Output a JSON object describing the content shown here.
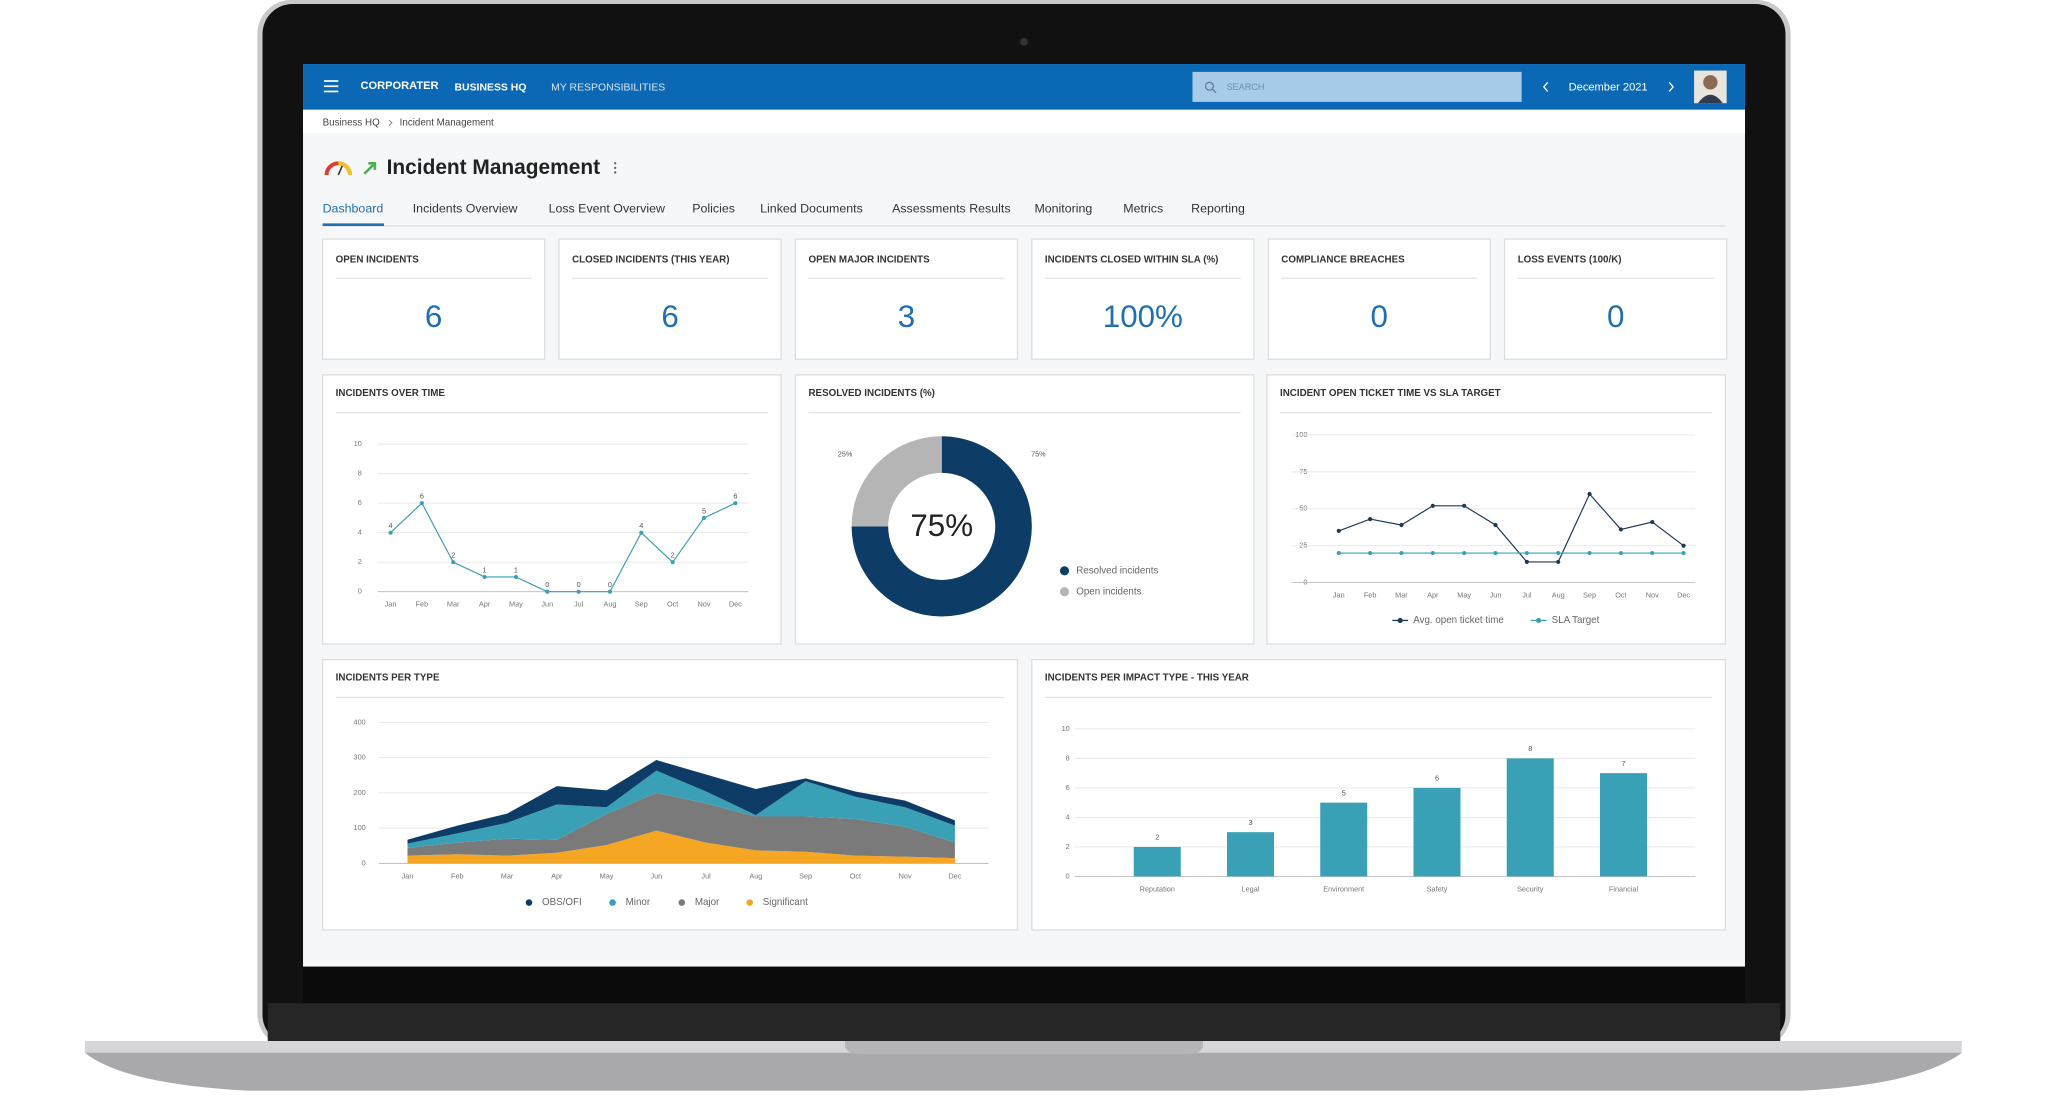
{
  "header": {
    "logo": "CORPORATER",
    "nav": [
      "BUSINESS HQ",
      "MY RESPONSIBILITIES"
    ],
    "search": "SEARCH",
    "period": "December 2021"
  },
  "breadcrumb": [
    "Business HQ",
    "Incident Management"
  ],
  "title": "Incident Management",
  "tabs": [
    "Dashboard",
    "Incidents Overview",
    "Loss Event Overview",
    "Policies",
    "Linked Documents",
    "Assessments Results",
    "Monitoring",
    "Metrics",
    "Reporting"
  ],
  "kpis": [
    {
      "title": "OPEN INCIDENTS",
      "value": "6"
    },
    {
      "title": "CLOSED INCIDENTS (THIS YEAR)",
      "value": "6"
    },
    {
      "title": "OPEN MAJOR INCIDENTS",
      "value": "3"
    },
    {
      "title": "INCIDENTS CLOSED WITHIN SLA (%)",
      "value": "100%"
    },
    {
      "title": "COMPLIANCE BREACHES",
      "value": "0"
    },
    {
      "title": "LOSS EVENTS (100/K)",
      "value": "0"
    }
  ],
  "chart_data": [
    {
      "type": "line",
      "title": "INCIDENTS OVER TIME",
      "categories": [
        "Jan",
        "Feb",
        "Mar",
        "Apr",
        "May",
        "Jun",
        "Jul",
        "Aug",
        "Sep",
        "Oct",
        "Nov",
        "Dec"
      ],
      "series": [
        {
          "name": "Incidents",
          "color": "#3aa0b5",
          "values": [
            4,
            6,
            2,
            1,
            1,
            0,
            0,
            0,
            4,
            2,
            5,
            6
          ]
        }
      ],
      "ylim": [
        0,
        10
      ],
      "yticks": [
        0,
        2,
        4,
        6,
        8,
        10
      ],
      "grid": true,
      "data_labels": true,
      "legend": false
    },
    {
      "type": "pie",
      "title": "RESOLVED INCIDENTS (%)",
      "categories": [
        "Resolved incidents",
        "Open incidents"
      ],
      "values": [
        75,
        25
      ],
      "value_labels": [
        "75%",
        "25%"
      ],
      "colors": [
        "#0d3d66",
        "#b5b5b5"
      ],
      "donut": true
    },
    {
      "type": "line",
      "title": "INCIDENT OPEN TICKET TIME VS SLA TARGET",
      "categories": [
        "Jan",
        "Feb",
        "Mar",
        "Apr",
        "May",
        "Jun",
        "Jul",
        "Aug",
        "Sep",
        "Oct",
        "Nov",
        "Dec"
      ],
      "series": [
        {
          "name": "Avg. open ticket time",
          "color": "#1d3a55",
          "values": [
            35,
            43,
            39,
            52,
            52,
            39,
            14,
            14,
            60,
            36,
            41,
            25
          ]
        },
        {
          "name": "SLA Target",
          "color": "#3aa0b5",
          "values": [
            20,
            20,
            20,
            20,
            20,
            20,
            20,
            20,
            20,
            20,
            20,
            20
          ]
        }
      ],
      "ylim": [
        0,
        100
      ],
      "yticks": [
        0,
        25,
        50,
        75,
        100
      ],
      "grid": true,
      "data_labels": false,
      "legend": true
    },
    {
      "type": "area",
      "title": "INCIDENTS PER TYPE",
      "stacked": true,
      "categories": [
        "Jan",
        "Feb",
        "Mar",
        "Apr",
        "May",
        "Jun",
        "Jul",
        "Aug",
        "Sep",
        "Oct",
        "Nov",
        "Dec"
      ],
      "series": [
        {
          "name": "OBS/OFI",
          "color": "#0d3d66",
          "values": [
            11,
            22,
            26,
            52,
            48,
            30,
            48,
            74,
            8,
            15,
            19,
            15
          ]
        },
        {
          "name": "Minor",
          "color": "#3aa0b5",
          "values": [
            12,
            26,
            45,
            100,
            19,
            63,
            34,
            4,
            100,
            63,
            55,
            48
          ]
        },
        {
          "name": "Major",
          "color": "#7a7a7a",
          "values": [
            22,
            33,
            48,
            37,
            88,
            107,
            111,
            96,
            100,
            104,
            85,
            44
          ]
        },
        {
          "name": "Significant",
          "color": "#f5a623",
          "values": [
            22,
            26,
            22,
            30,
            52,
            93,
            59,
            37,
            33,
            22,
            19,
            15
          ]
        }
      ],
      "ylim": [
        0,
        400
      ],
      "yticks": [
        0,
        100,
        200,
        300,
        400
      ],
      "grid": true,
      "legend": true
    },
    {
      "type": "bar",
      "title": "INCIDENTS PER IMPACT TYPE - THIS YEAR",
      "categories": [
        "Reputation",
        "Legal",
        "Environment",
        "Safety",
        "Security",
        "Financial"
      ],
      "values": [
        2,
        3,
        5,
        6,
        8,
        7
      ],
      "color": "#3aa0b5",
      "ylim": [
        0,
        10
      ],
      "yticks": [
        0,
        2,
        4,
        6,
        8,
        10
      ],
      "grid": true,
      "data_labels": true
    }
  ]
}
